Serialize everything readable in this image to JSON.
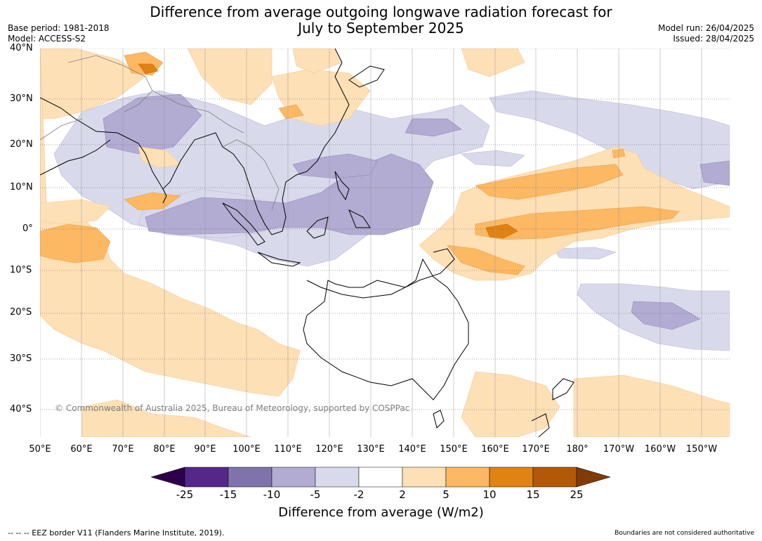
{
  "header": {
    "title_line1": "Difference from average outgoing longwave radiation forecast for",
    "title_line2": "July to September 2025",
    "base_period": "Base period: 1981-2018",
    "model": "Model: ACCESS-S2",
    "model_run": "Model run: 26/04/2025",
    "issued": "Issued: 28/04/2025"
  },
  "map": {
    "copyright": "© Commonwealth of Australia 2025, Bureau of Meteorology, supported by COSPPac",
    "lat_labels": [
      "40°N",
      "30°N",
      "20°N",
      "10°N",
      "0°",
      "10°S",
      "20°S",
      "30°S",
      "40°S"
    ],
    "lon_labels": [
      "50°E",
      "60°E",
      "70°E",
      "80°E",
      "90°E",
      "100°E",
      "110°E",
      "120°E",
      "130°E",
      "140°E",
      "150°E",
      "160°E",
      "170°E",
      "180°",
      "170°W",
      "160°W",
      "150°W"
    ]
  },
  "colorbar": {
    "title": "Difference from average (W/m2)",
    "tick_labels": [
      "-25",
      "-15",
      "-10",
      "-5",
      "-2",
      "2",
      "5",
      "10",
      "15",
      "25"
    ],
    "colors": {
      "below_min": "#2d004b",
      "neg_25_15": "#542788",
      "neg_15_10": "#8073ac",
      "neg_10_5": "#b2abd2",
      "neg_5_2": "#d8daeb",
      "neutral": "#ffffff",
      "pos_2_5": "#fee0b6",
      "pos_5_10": "#fdb863",
      "pos_10_15": "#e08214",
      "pos_15_25": "#b35806",
      "above_max": "#7f3b08"
    }
  },
  "footer": {
    "eez_legend": "-- -- -- EEZ border V11 (Flanders Marine Institute, 2019).",
    "boundaries_note": "Boundaries are not considered authoritative"
  }
}
